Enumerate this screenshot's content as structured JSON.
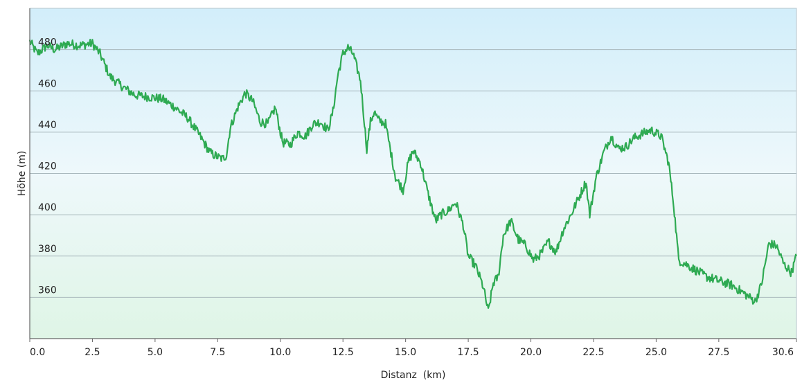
{
  "chart_data": {
    "type": "area",
    "title": "",
    "xlabel": "Distanz  (km)",
    "ylabel": "Höhe (m)",
    "xlim": [
      0,
      30.6
    ],
    "ylim": [
      340,
      500
    ],
    "x_ticks": [
      0.0,
      2.5,
      5.0,
      7.5,
      10.0,
      12.5,
      15.0,
      17.5,
      20.0,
      22.5,
      25.0,
      27.5,
      30.6
    ],
    "x_tick_labels": [
      "0.0",
      "2.5",
      "5.0",
      "7.5",
      "10.0",
      "12.5",
      "15.0",
      "17.5",
      "20.0",
      "22.5",
      "25.0",
      "27.5",
      "30.6"
    ],
    "y_ticks": [
      360,
      380,
      400,
      420,
      440,
      460,
      480
    ],
    "y_tick_labels": [
      "360",
      "380",
      "400",
      "420",
      "440",
      "460",
      "480"
    ],
    "grid": true,
    "line_color": "#2eaa52",
    "background_top_color": "#d2eefa",
    "background_bottom_color": "#dff5e6",
    "series": [
      {
        "x": [
          0.0,
          0.3,
          0.7,
          1.0,
          1.5,
          2.0,
          2.5,
          2.8,
          3.2,
          3.7,
          4.2,
          4.8,
          5.3,
          5.8,
          6.3,
          6.8,
          7.2,
          7.5,
          7.7,
          7.85,
          8.0,
          8.3,
          8.6,
          8.9,
          9.2,
          9.5,
          9.8,
          10.0,
          10.1,
          10.4,
          10.7,
          11.0,
          11.3,
          11.6,
          11.9,
          12.1,
          12.3,
          12.5,
          12.7,
          12.9,
          13.2,
          13.45,
          13.6,
          13.75,
          13.9,
          14.2,
          14.6,
          14.9,
          15.1,
          15.3,
          15.6,
          15.9,
          16.2,
          16.4,
          16.7,
          17.0,
          17.3,
          17.5,
          17.8,
          18.1,
          18.3,
          18.5,
          18.7,
          18.9,
          19.2,
          19.5,
          19.8,
          20.1,
          20.4,
          20.7,
          21.0,
          21.3,
          21.6,
          21.9,
          22.2,
          22.35,
          22.6,
          22.9,
          23.2,
          23.5,
          23.8,
          24.1,
          24.4,
          24.8,
          25.2,
          25.5,
          25.7,
          25.9,
          26.2,
          26.6,
          27.0,
          27.5,
          28.0,
          28.5,
          28.95,
          29.2,
          29.5,
          29.8,
          30.1,
          30.4,
          30.6
        ],
        "y": [
          484,
          478,
          482,
          480,
          483,
          482,
          483,
          478,
          467,
          462,
          458,
          457,
          456,
          452,
          447,
          438,
          430,
          428,
          427,
          429,
          442,
          452,
          459,
          455,
          445,
          444,
          452,
          440,
          435,
          434,
          440,
          438,
          444,
          445,
          441,
          450,
          468,
          478,
          481,
          478,
          465,
          432,
          445,
          450,
          446,
          444,
          418,
          412,
          425,
          431,
          425,
          410,
          397,
          400,
          402,
          406,
          395,
          380,
          375,
          365,
          353,
          367,
          370,
          390,
          397,
          388,
          385,
          378,
          381,
          387,
          382,
          393,
          400,
          408,
          416,
          400,
          418,
          430,
          438,
          432,
          433,
          437,
          439,
          441,
          438,
          425,
          405,
          378,
          376,
          373,
          370,
          368,
          366,
          362,
          358,
          366,
          386,
          385,
          376,
          372,
          380
        ]
      }
    ]
  }
}
